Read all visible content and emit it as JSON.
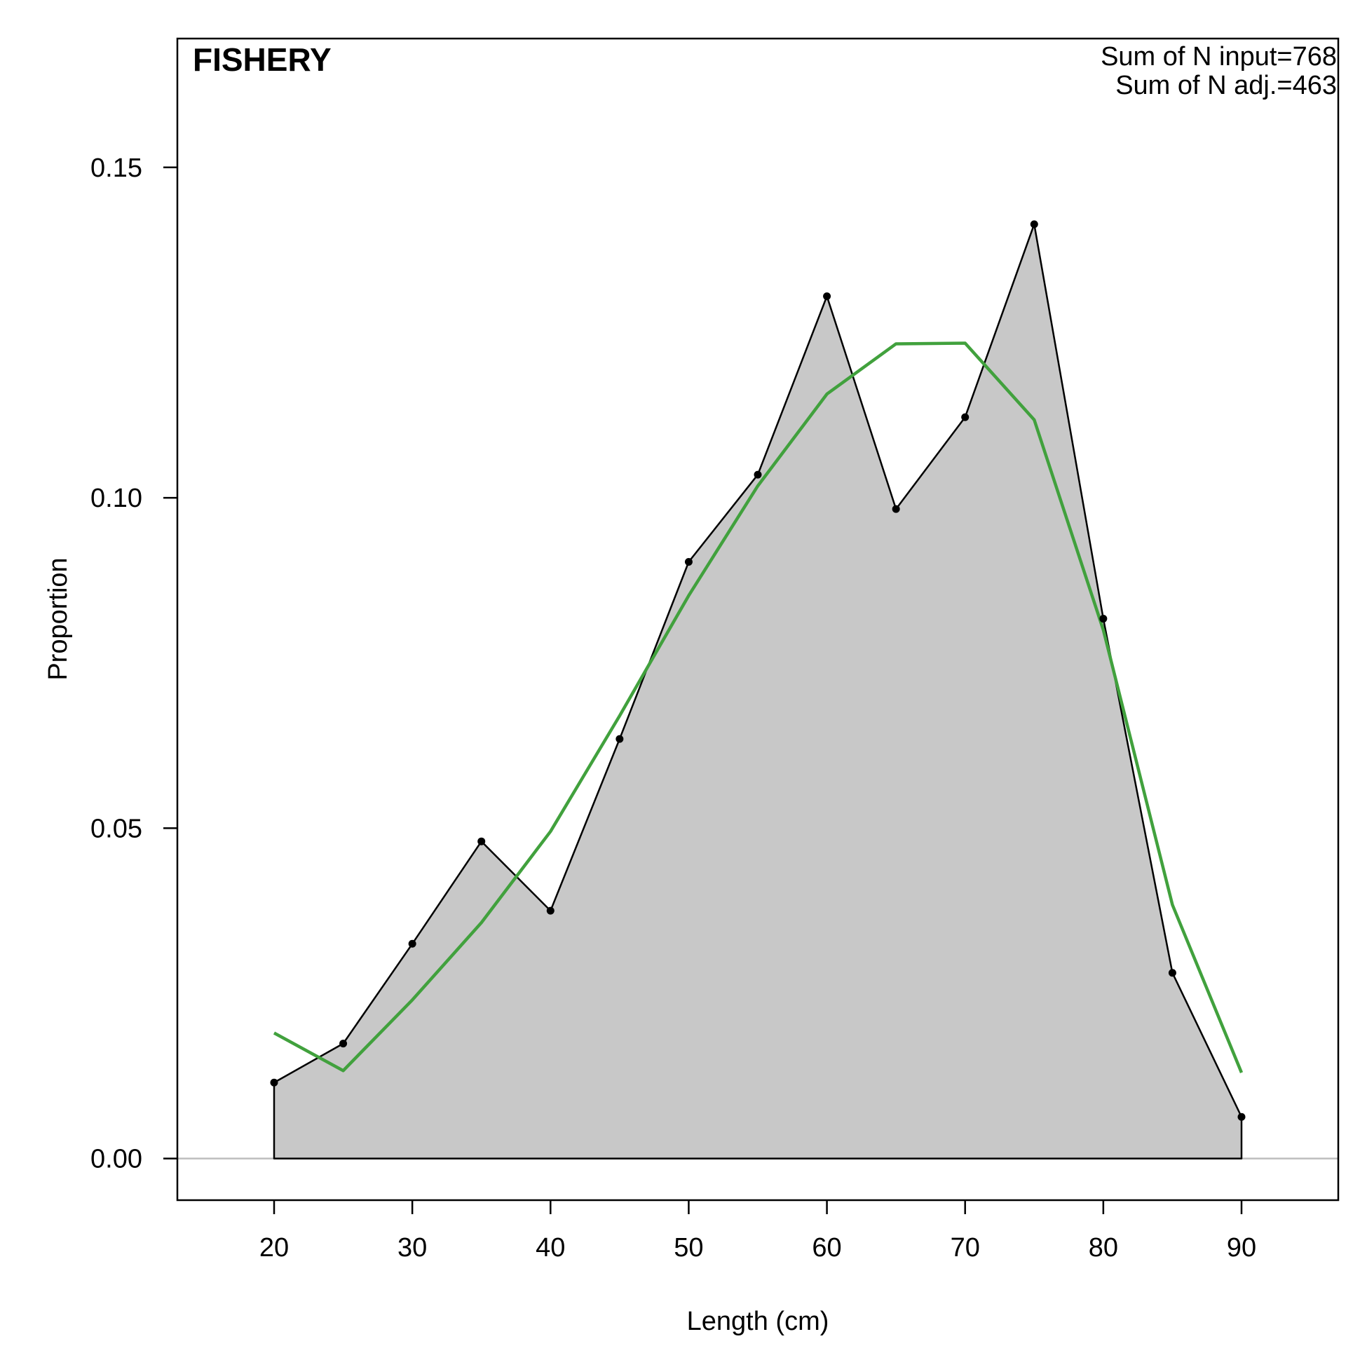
{
  "chart_data": {
    "type": "area",
    "title": "FISHERY",
    "annotations": [
      "Sum of N input=768",
      "Sum of N adj.=463"
    ],
    "xlabel": "Length (cm)",
    "ylabel": "Proportion",
    "xlim": [
      13,
      97
    ],
    "ylim": [
      -0.0063,
      0.1695
    ],
    "x_ticks": [
      20,
      30,
      40,
      50,
      60,
      70,
      80,
      90
    ],
    "x_tick_labels": [
      "20",
      "30",
      "40",
      "50",
      "60",
      "70",
      "80",
      "90"
    ],
    "y_ticks": [
      0.0,
      0.05,
      0.1,
      0.15
    ],
    "y_tick_labels": [
      "0.00",
      "0.05",
      "0.10",
      "0.15"
    ],
    "grid": false,
    "legend": "none",
    "series": [
      {
        "role": "observed",
        "x": [
          20,
          25,
          30,
          35,
          40,
          45,
          50,
          55,
          60,
          65,
          70,
          75,
          80,
          85,
          90
        ],
        "values": [
          0.0115,
          0.0174,
          0.0325,
          0.048,
          0.0375,
          0.0635,
          0.0903,
          0.1035,
          0.1305,
          0.0983,
          0.1122,
          0.1414,
          0.0817,
          0.0281,
          0.0063
        ],
        "fill": "#c8c8c8",
        "color": "#000000"
      },
      {
        "role": "expected",
        "x": [
          20,
          25,
          30,
          35,
          40,
          45,
          50,
          55,
          60,
          65,
          70,
          75,
          80,
          85,
          90
        ],
        "values": [
          0.019,
          0.0133,
          0.024,
          0.0357,
          0.0495,
          0.067,
          0.0852,
          0.1018,
          0.1157,
          0.1233,
          0.1234,
          0.1118,
          0.08,
          0.0384,
          0.013
        ],
        "color": "#41a13d"
      }
    ],
    "zero_line_color": "#bebebe"
  }
}
